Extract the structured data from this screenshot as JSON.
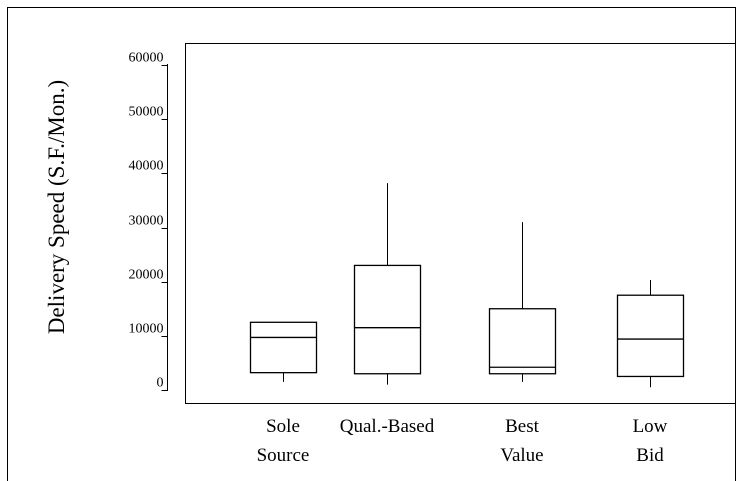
{
  "chart_data": {
    "type": "box",
    "title": "",
    "xlabel": "",
    "ylabel": "Delivery Speed (S.F./Mon.)",
    "ylim": [
      0,
      60000
    ],
    "yticks": [
      0,
      10000,
      20000,
      30000,
      40000,
      50000,
      60000
    ],
    "ytick_labels": [
      "0",
      "10000",
      "20000",
      "30000",
      "40000",
      "50000",
      "60000"
    ],
    "grid": false,
    "legend": "none",
    "categories": [
      {
        "label_lines": [
          "Sole",
          "Source"
        ],
        "min": 1500,
        "q1": 3200,
        "median": 9700,
        "q3": 12500,
        "max": 12500
      },
      {
        "label_lines": [
          "Qual.-Based",
          ""
        ],
        "min": 1000,
        "q1": 3000,
        "median": 11500,
        "q3": 23000,
        "max": 38200
      },
      {
        "label_lines": [
          "Best",
          "Value"
        ],
        "min": 1500,
        "q1": 3000,
        "median": 4200,
        "q3": 15000,
        "max": 31000
      },
      {
        "label_lines": [
          "Low",
          "Bid"
        ],
        "min": 500,
        "q1": 2500,
        "median": 9400,
        "q3": 17500,
        "max": 20300
      }
    ]
  },
  "colors": {
    "stroke": "#000000",
    "background": "#ffffff"
  }
}
